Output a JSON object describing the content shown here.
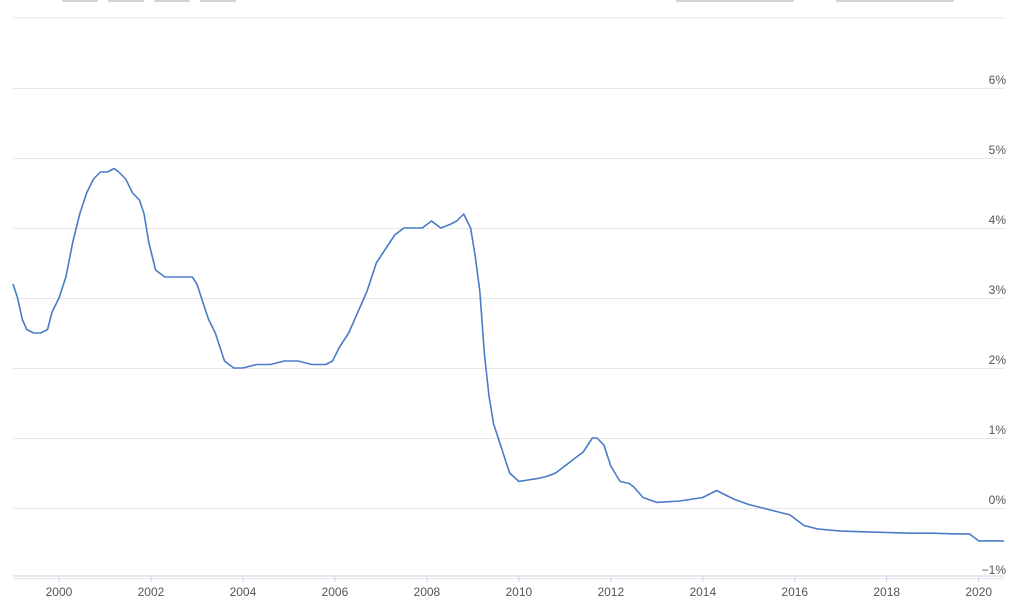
{
  "colors": {
    "line": "#4a7bc8",
    "grid": "#e6e6e6",
    "axis": "#c8d4e8",
    "text": "#555555"
  },
  "chart_data": {
    "type": "line",
    "title": "",
    "xlabel": "",
    "ylabel": "",
    "xlim": [
      1999.0,
      2020.55
    ],
    "ylim": [
      -1,
      6
    ],
    "x_ticks": [
      2000,
      2002,
      2004,
      2006,
      2008,
      2010,
      2012,
      2014,
      2016,
      2018,
      2020
    ],
    "x_tick_labels": [
      "2000",
      "2002",
      "2004",
      "2006",
      "2008",
      "2010",
      "2012",
      "2014",
      "2016",
      "2018",
      "2020"
    ],
    "y_ticks": [
      6,
      5,
      4,
      3,
      2,
      1,
      0,
      -1
    ],
    "y_tick_labels": [
      "6%",
      "5%",
      "4%",
      "3%",
      "2%",
      "1%",
      "0%",
      "−1%"
    ],
    "grid": true,
    "legend": "none",
    "series": [
      {
        "x": [
          1999.0,
          1999.1,
          1999.2,
          1999.3,
          1999.45,
          1999.6,
          1999.75,
          1999.85,
          2000.0,
          2000.15,
          2000.3,
          2000.45,
          2000.6,
          2000.75,
          2000.9,
          2001.05,
          2001.2,
          2001.3,
          2001.45,
          2001.6,
          2001.75,
          2001.85,
          2001.95,
          2002.1,
          2002.3,
          2002.5,
          2002.7,
          2002.9,
          2003.0,
          2003.1,
          2003.25,
          2003.4,
          2003.6,
          2003.8,
          2004.0,
          2004.3,
          2004.6,
          2004.9,
          2005.2,
          2005.5,
          2005.8,
          2005.95,
          2006.1,
          2006.3,
          2006.5,
          2006.7,
          2006.9,
          2007.1,
          2007.3,
          2007.5,
          2007.7,
          2007.9,
          2008.1,
          2008.3,
          2008.5,
          2008.65,
          2008.8,
          2008.95,
          2009.05,
          2009.15,
          2009.25,
          2009.35,
          2009.45,
          2009.6,
          2009.8,
          2010.0,
          2010.2,
          2010.4,
          2010.6,
          2010.8,
          2011.0,
          2011.2,
          2011.4,
          2011.5,
          2011.6,
          2011.7,
          2011.85,
          2012.0,
          2012.2,
          2012.4,
          2012.5,
          2012.7,
          2013.0,
          2013.5,
          2014.0,
          2014.3,
          2014.45,
          2014.7,
          2015.0,
          2015.3,
          2015.6,
          2015.9,
          2016.0,
          2016.2,
          2016.5,
          2017.0,
          2017.5,
          2018.0,
          2018.5,
          2019.0,
          2019.5,
          2019.8,
          2020.0,
          2020.3,
          2020.55
        ],
        "y": [
          3.2,
          3.0,
          2.7,
          2.55,
          2.5,
          2.5,
          2.55,
          2.8,
          3.0,
          3.3,
          3.8,
          4.2,
          4.5,
          4.7,
          4.8,
          4.8,
          4.85,
          4.8,
          4.7,
          4.5,
          4.4,
          4.2,
          3.8,
          3.4,
          3.3,
          3.3,
          3.3,
          3.3,
          3.2,
          3.0,
          2.7,
          2.5,
          2.1,
          2.0,
          2.0,
          2.05,
          2.05,
          2.1,
          2.1,
          2.05,
          2.05,
          2.1,
          2.3,
          2.5,
          2.8,
          3.1,
          3.5,
          3.7,
          3.9,
          4.0,
          4.0,
          4.0,
          4.1,
          4.0,
          4.05,
          4.1,
          4.2,
          4.0,
          3.6,
          3.1,
          2.2,
          1.6,
          1.2,
          0.9,
          0.5,
          0.38,
          0.4,
          0.42,
          0.45,
          0.5,
          0.6,
          0.7,
          0.8,
          0.9,
          1.0,
          1.0,
          0.9,
          0.6,
          0.38,
          0.35,
          0.3,
          0.15,
          0.08,
          0.1,
          0.15,
          0.25,
          0.2,
          0.12,
          0.05,
          0.0,
          -0.05,
          -0.1,
          -0.15,
          -0.25,
          -0.3,
          -0.33,
          -0.34,
          -0.35,
          -0.36,
          -0.36,
          -0.37,
          -0.37,
          -0.47,
          -0.47,
          -0.47
        ]
      }
    ]
  }
}
